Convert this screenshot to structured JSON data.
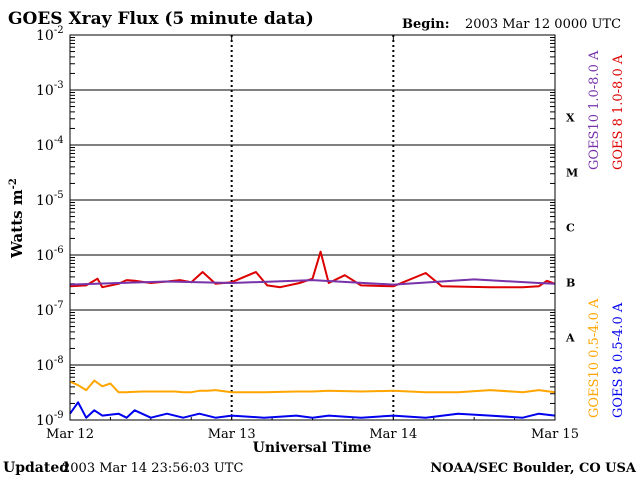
{
  "header": {
    "title": "GOES Xray Flux (5 minute data)",
    "begin_label": "Begin:",
    "begin_value": "2003 Mar 12 0000 UTC"
  },
  "footer": {
    "updated_label": "Updated",
    "updated_value": "2003 Mar 14 23:56:03 UTC",
    "credit": "NOAA/SEC Boulder, CO USA"
  },
  "chart_data": {
    "type": "line",
    "title": "GOES Xray Flux (5 minute data)",
    "xlabel": "Universal Time",
    "ylabel": "Watts m",
    "ylabel_superscript": "-2",
    "yscale": "log",
    "ylim": [
      1e-09,
      0.01
    ],
    "y_ticks": [
      {
        "value": 0.01,
        "base": "10",
        "exp": "-2"
      },
      {
        "value": 0.001,
        "base": "10",
        "exp": "-3"
      },
      {
        "value": 0.0001,
        "base": "10",
        "exp": "-4"
      },
      {
        "value": 1e-05,
        "base": "10",
        "exp": "-5"
      },
      {
        "value": 1e-06,
        "base": "10",
        "exp": "-6"
      },
      {
        "value": 1e-07,
        "base": "10",
        "exp": "-7"
      },
      {
        "value": 1e-08,
        "base": "10",
        "exp": "-8"
      },
      {
        "value": 1e-09,
        "base": "10",
        "exp": "-9"
      }
    ],
    "xlim_days": [
      12,
      15
    ],
    "x_ticks": [
      {
        "day": 12,
        "label": "Mar 12"
      },
      {
        "day": 13,
        "label": "Mar 13"
      },
      {
        "day": 14,
        "label": "Mar 14"
      },
      {
        "day": 15,
        "label": "Mar 15"
      }
    ],
    "flare_classes": [
      {
        "label": "X",
        "lo": 0.0001,
        "hi": 0.001
      },
      {
        "label": "M",
        "lo": 1e-05,
        "hi": 0.0001
      },
      {
        "label": "C",
        "lo": 1e-06,
        "hi": 1e-05
      },
      {
        "label": "B",
        "lo": 1e-07,
        "hi": 1e-06
      },
      {
        "label": "A",
        "lo": 1e-08,
        "hi": 1e-07
      }
    ],
    "grid": true,
    "series": [
      {
        "name": "GOES 8 1.0-8.0 A",
        "color": "#dd0000",
        "points": [
          [
            12.0,
            2.7e-07
          ],
          [
            12.1,
            2.8e-07
          ],
          [
            12.17,
            3.7e-07
          ],
          [
            12.2,
            2.6e-07
          ],
          [
            12.3,
            3e-07
          ],
          [
            12.35,
            3.5e-07
          ],
          [
            12.4,
            3.4e-07
          ],
          [
            12.5,
            3.1e-07
          ],
          [
            12.6,
            3.3e-07
          ],
          [
            12.68,
            3.5e-07
          ],
          [
            12.75,
            3.2e-07
          ],
          [
            12.82,
            4.9e-07
          ],
          [
            12.9,
            3e-07
          ],
          [
            13.0,
            3.2e-07
          ],
          [
            13.15,
            4.9e-07
          ],
          [
            13.22,
            2.8e-07
          ],
          [
            13.3,
            2.6e-07
          ],
          [
            13.42,
            3.1e-07
          ],
          [
            13.5,
            3.7e-07
          ],
          [
            13.55,
            1.15e-06
          ],
          [
            13.6,
            3.1e-07
          ],
          [
            13.7,
            4.3e-07
          ],
          [
            13.8,
            2.8e-07
          ],
          [
            14.0,
            2.7e-07
          ],
          [
            14.2,
            4.7e-07
          ],
          [
            14.3,
            2.7e-07
          ],
          [
            14.6,
            2.6e-07
          ],
          [
            14.8,
            2.6e-07
          ],
          [
            14.9,
            2.7e-07
          ],
          [
            14.95,
            3.4e-07
          ],
          [
            15.0,
            3e-07
          ]
        ]
      },
      {
        "name": "GOES10 1.0-8.0 A",
        "color": "#7733aa",
        "points": [
          [
            12.0,
            2.9e-07
          ],
          [
            12.3,
            3.1e-07
          ],
          [
            12.6,
            3.3e-07
          ],
          [
            13.0,
            3.1e-07
          ],
          [
            13.5,
            3.5e-07
          ],
          [
            14.0,
            2.9e-07
          ],
          [
            14.5,
            3.6e-07
          ],
          [
            14.9,
            3.1e-07
          ],
          [
            15.0,
            3e-07
          ]
        ]
      },
      {
        "name": "GOES10 0.5-4.0 A",
        "color": "#ffa500",
        "points": [
          [
            12.0,
            5e-09
          ],
          [
            12.05,
            4.3e-09
          ],
          [
            12.1,
            3.5e-09
          ],
          [
            12.15,
            5.2e-09
          ],
          [
            12.2,
            4.1e-09
          ],
          [
            12.25,
            4.6e-09
          ],
          [
            12.3,
            3.2e-09
          ],
          [
            12.35,
            3.2e-09
          ],
          [
            12.45,
            3.3e-09
          ],
          [
            12.5,
            3.3e-09
          ],
          [
            12.6,
            3.3e-09
          ],
          [
            12.65,
            3.3e-09
          ],
          [
            12.7,
            3.2e-09
          ],
          [
            12.75,
            3.2e-09
          ],
          [
            12.8,
            3.4e-09
          ],
          [
            12.85,
            3.4e-09
          ],
          [
            12.9,
            3.5e-09
          ],
          [
            13.0,
            3.2e-09
          ],
          [
            13.2,
            3.2e-09
          ],
          [
            13.4,
            3.3e-09
          ],
          [
            13.5,
            3.3e-09
          ],
          [
            13.6,
            3.4e-09
          ],
          [
            13.8,
            3.3e-09
          ],
          [
            14.0,
            3.4e-09
          ],
          [
            14.2,
            3.2e-09
          ],
          [
            14.4,
            3.2e-09
          ],
          [
            14.6,
            3.5e-09
          ],
          [
            14.8,
            3.2e-09
          ],
          [
            14.9,
            3.5e-09
          ],
          [
            15.0,
            3.2e-09
          ]
        ]
      },
      {
        "name": "GOES 8 0.5-4.0 A",
        "color": "#0000ee",
        "points": [
          [
            12.0,
            1.3e-09
          ],
          [
            12.05,
            2.1e-09
          ],
          [
            12.1,
            1.1e-09
          ],
          [
            12.15,
            1.5e-09
          ],
          [
            12.2,
            1.2e-09
          ],
          [
            12.3,
            1.3e-09
          ],
          [
            12.35,
            1.1e-09
          ],
          [
            12.4,
            1.5e-09
          ],
          [
            12.5,
            1.1e-09
          ],
          [
            12.6,
            1.3e-09
          ],
          [
            12.7,
            1.1e-09
          ],
          [
            12.8,
            1.3e-09
          ],
          [
            12.9,
            1.1e-09
          ],
          [
            13.0,
            1.2e-09
          ],
          [
            13.2,
            1.1e-09
          ],
          [
            13.4,
            1.2e-09
          ],
          [
            13.5,
            1.1e-09
          ],
          [
            13.6,
            1.2e-09
          ],
          [
            13.8,
            1.1e-09
          ],
          [
            14.0,
            1.2e-09
          ],
          [
            14.2,
            1.1e-09
          ],
          [
            14.4,
            1.3e-09
          ],
          [
            14.6,
            1.2e-09
          ],
          [
            14.8,
            1.1e-09
          ],
          [
            14.9,
            1.3e-09
          ],
          [
            15.0,
            1.2e-09
          ]
        ]
      }
    ],
    "legend": [
      {
        "label": "GOES10 1.0-8.0 A",
        "color": "#7733aa"
      },
      {
        "label": "GOES 8 1.0-8.0 A",
        "color": "#dd0000"
      },
      {
        "label": "GOES10 0.5-4.0 A",
        "color": "#ffa500"
      },
      {
        "label": "GOES 8 0.5-4.0 A",
        "color": "#0000ee"
      }
    ],
    "legend_placement": "right, vertical"
  }
}
